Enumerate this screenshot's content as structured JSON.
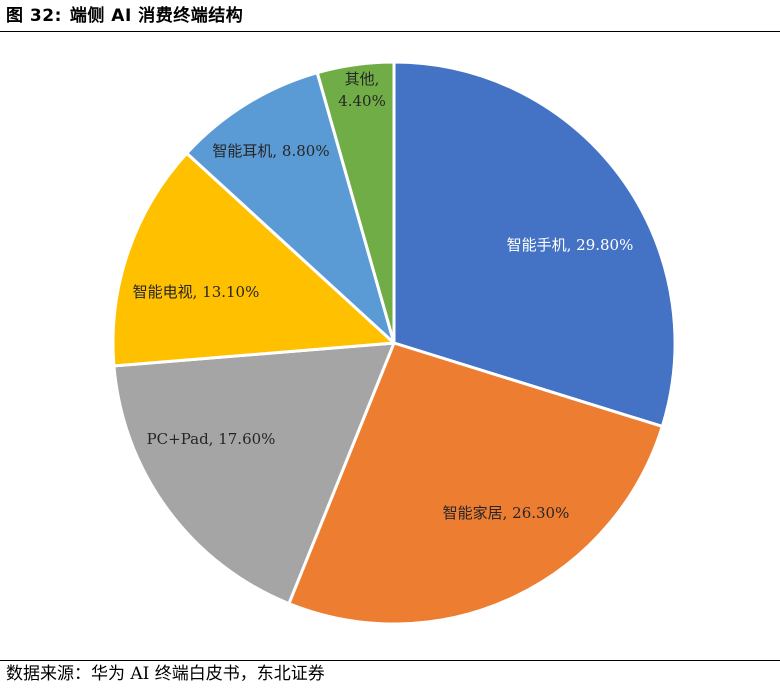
{
  "figure": {
    "number_label": "图 32:",
    "title": "端侧 AI 消费终端结构"
  },
  "source_note": "数据来源：华为 AI 终端白皮书，东北证券",
  "chart_data": {
    "type": "pie",
    "title": "端侧 AI 消费终端结构",
    "start_angle_deg": 0,
    "direction": "clockwise",
    "slice_border_color": "#ffffff",
    "slices": [
      {
        "label": "智能手机",
        "value": 29.8,
        "value_text": "29.80%",
        "display": "智能手机, 29.80%",
        "color": "#4472C4",
        "text_color": "#ffffff"
      },
      {
        "label": "智能家居",
        "value": 26.3,
        "value_text": "26.30%",
        "display": "智能家居, 26.30%",
        "color": "#ED7D31",
        "text_color": "#262626"
      },
      {
        "label": "PC+Pad",
        "value": 17.6,
        "value_text": "17.60%",
        "display": "PC+Pad, 17.60%",
        "color": "#A5A5A5",
        "text_color": "#262626"
      },
      {
        "label": "智能电视",
        "value": 13.1,
        "value_text": "13.10%",
        "display": "智能电视, 13.10%",
        "color": "#FFC000",
        "text_color": "#262626"
      },
      {
        "label": "智能耳机",
        "value": 8.8,
        "value_text": "8.80%",
        "display": "智能耳机, 8.80%",
        "color": "#5B9BD5",
        "text_color": "#262626"
      },
      {
        "label": "其他",
        "value": 4.4,
        "value_text": "4.40%",
        "display_lines": [
          "其他,",
          "4.40%"
        ],
        "color": "#70AD47",
        "text_color": "#262626"
      }
    ]
  }
}
